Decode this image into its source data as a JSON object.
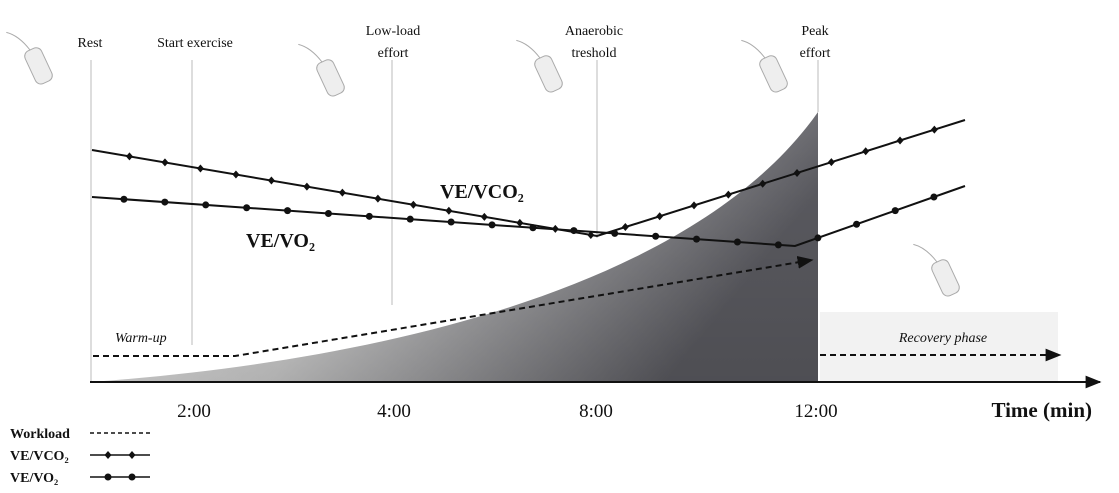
{
  "phases": [
    {
      "lines": [
        "Rest"
      ]
    },
    {
      "lines": [
        "Start exercise"
      ]
    },
    {
      "lines": [
        "Low-load",
        "effort"
      ]
    },
    {
      "lines": [
        "Anaerobic",
        "treshold"
      ]
    },
    {
      "lines": [
        "Peak",
        "effort"
      ]
    }
  ],
  "curves": {
    "ve_vco2": "VE/VCO₂",
    "ve_vo2": "VE/VO₂"
  },
  "regions": {
    "warm_up": "Warm-up",
    "recovery": "Recovery phase"
  },
  "time_axis": {
    "ticks": [
      "2:00",
      "4:00",
      "8:00",
      "12:00"
    ],
    "title": "Time (min)"
  },
  "legend": [
    {
      "label": "Workload"
    },
    {
      "label": "VE/VCO₂"
    },
    {
      "label": "VE/VO₂"
    }
  ]
}
